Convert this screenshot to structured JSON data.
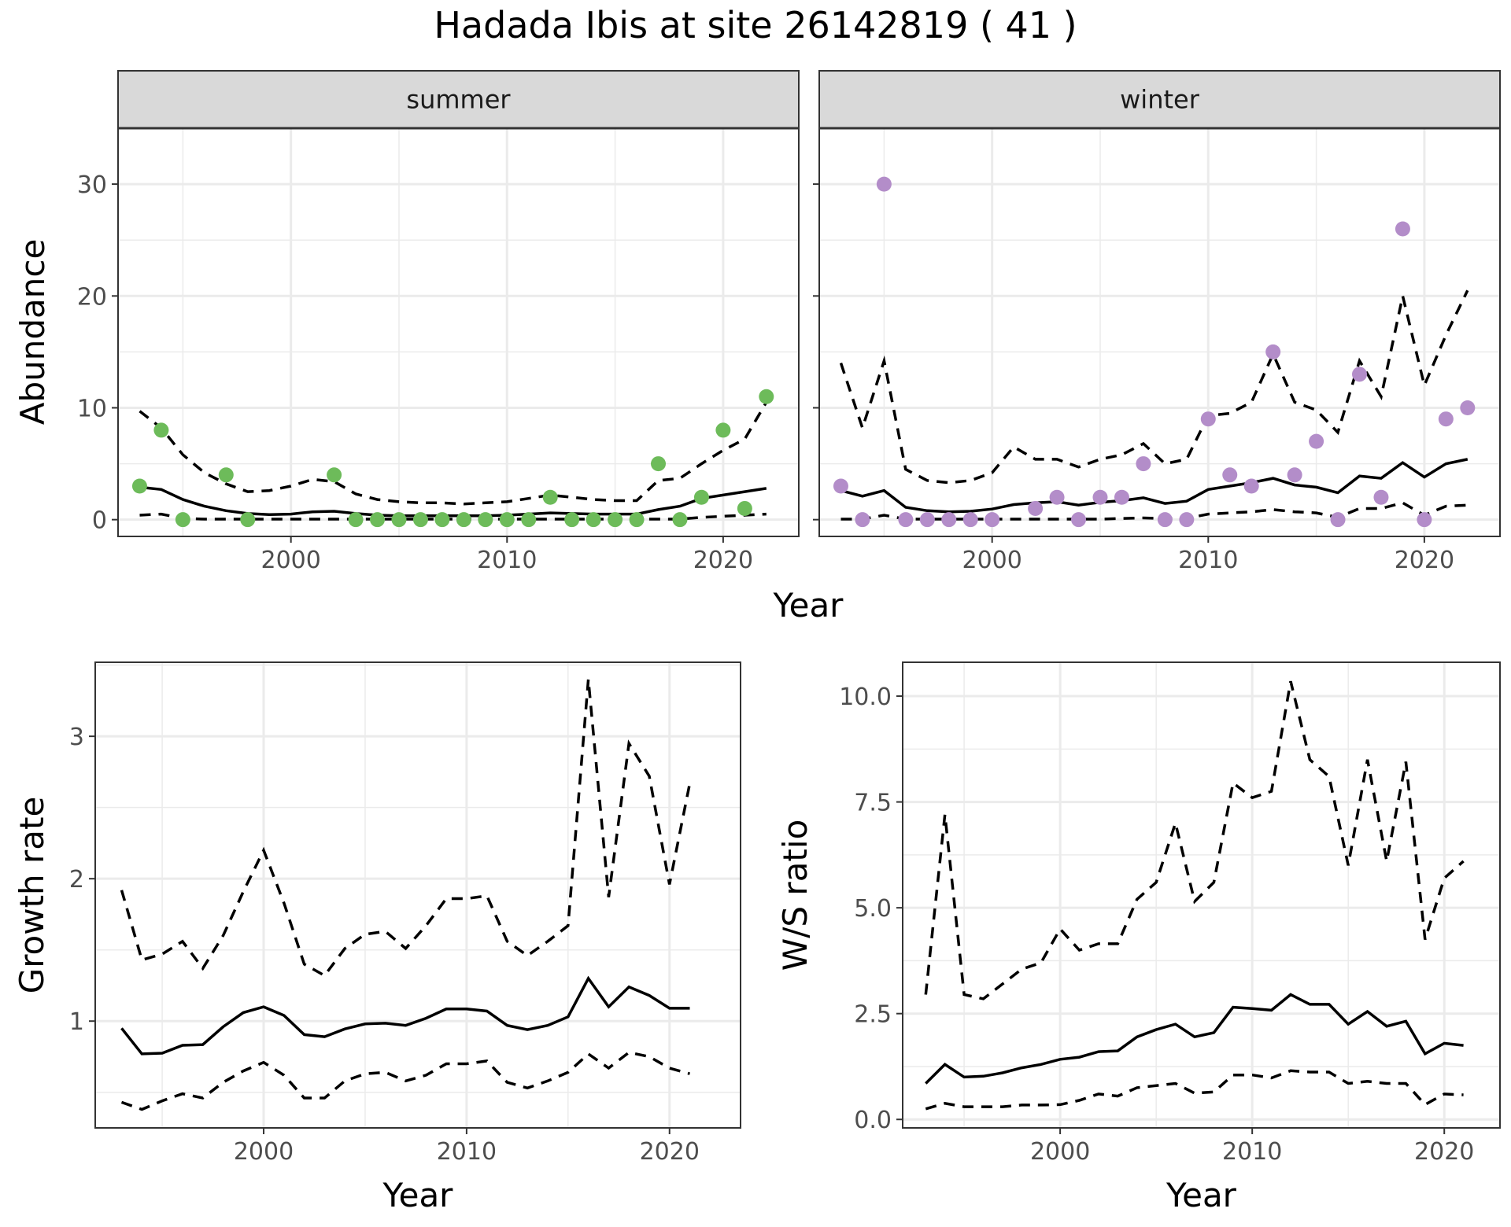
{
  "title": "Hadada Ibis at site 26142819 ( 41 )",
  "colors": {
    "summer_points": "#6dbb5a",
    "winter_points": "#b38dc9",
    "lines": "#000000"
  },
  "chart_data": [
    {
      "id": "abundance-summer",
      "type": "scatter",
      "strip_label": "summer",
      "xlabel": "Year",
      "ylabel": "Abundance",
      "xlim": [
        1992,
        2023.5
      ],
      "ylim": [
        -1.5,
        35
      ],
      "x_ticks": [
        2000,
        2010,
        2020
      ],
      "y_ticks": [
        0,
        10,
        20,
        30
      ],
      "x_tick_labels": [
        "2000",
        "2010",
        "2020"
      ],
      "y_tick_labels": [
        "0",
        "10",
        "20",
        "30"
      ],
      "point_color": "#6dbb5a",
      "points": {
        "x": [
          1993,
          1994,
          1995,
          1997,
          1998,
          2002,
          2003,
          2004,
          2005,
          2006,
          2007,
          2008,
          2009,
          2010,
          2011,
          2012,
          2013,
          2014,
          2015,
          2016,
          2017,
          2018,
          2019,
          2020,
          2021,
          2022
        ],
        "y": [
          3,
          8,
          0,
          4,
          0,
          4,
          0,
          0,
          0,
          0,
          0,
          0,
          0,
          0,
          0,
          2,
          0,
          0,
          0,
          0,
          5,
          0,
          2,
          8,
          1,
          11
        ]
      },
      "series": [
        {
          "name": "mean",
          "style": "solid",
          "x": [
            1993,
            1994,
            1995,
            1996,
            1997,
            1998,
            1999,
            2000,
            2001,
            2002,
            2003,
            2004,
            2005,
            2006,
            2007,
            2008,
            2009,
            2010,
            2011,
            2012,
            2013,
            2014,
            2015,
            2016,
            2017,
            2018,
            2019,
            2020,
            2021,
            2022
          ],
          "y": [
            2.9,
            2.7,
            1.8,
            1.2,
            0.8,
            0.55,
            0.45,
            0.5,
            0.7,
            0.75,
            0.55,
            0.4,
            0.35,
            0.35,
            0.35,
            0.35,
            0.35,
            0.4,
            0.5,
            0.6,
            0.55,
            0.5,
            0.5,
            0.5,
            0.9,
            1.2,
            1.9,
            2.2,
            2.5,
            2.8
          ]
        },
        {
          "name": "upper",
          "style": "dashed",
          "x": [
            1993,
            1994,
            1995,
            1996,
            1997,
            1998,
            1999,
            2000,
            2001,
            2002,
            2003,
            2004,
            2005,
            2006,
            2007,
            2008,
            2009,
            2010,
            2011,
            2012,
            2013,
            2014,
            2015,
            2016,
            2017,
            2018,
            2019,
            2020,
            2021,
            2022
          ],
          "y": [
            9.7,
            8.2,
            5.8,
            4.2,
            3.2,
            2.5,
            2.6,
            3.0,
            3.6,
            3.4,
            2.3,
            1.8,
            1.6,
            1.5,
            1.5,
            1.4,
            1.5,
            1.6,
            1.9,
            2.2,
            2.0,
            1.8,
            1.7,
            1.7,
            3.5,
            3.7,
            5.0,
            6.2,
            7.2,
            10.5
          ]
        },
        {
          "name": "lower",
          "style": "dashed",
          "x": [
            1993,
            1994,
            1995,
            1996,
            1997,
            1998,
            1999,
            2000,
            2001,
            2002,
            2003,
            2004,
            2005,
            2006,
            2007,
            2008,
            2009,
            2010,
            2011,
            2012,
            2013,
            2014,
            2015,
            2016,
            2017,
            2018,
            2019,
            2020,
            2021,
            2022
          ],
          "y": [
            0.4,
            0.5,
            0.1,
            0.05,
            0.05,
            0.05,
            0.05,
            0.05,
            0.05,
            0.05,
            0.05,
            0.05,
            0.05,
            0.05,
            0.05,
            0.05,
            0.05,
            0.05,
            0.05,
            0.05,
            0.05,
            0.05,
            0.05,
            0.05,
            0.05,
            0.05,
            0.2,
            0.3,
            0.4,
            0.5
          ]
        }
      ]
    },
    {
      "id": "abundance-winter",
      "type": "scatter",
      "strip_label": "winter",
      "xlabel": "Year",
      "ylabel": "",
      "xlim": [
        1992,
        2023.5
      ],
      "ylim": [
        -1.5,
        35
      ],
      "x_ticks": [
        2000,
        2010,
        2020
      ],
      "y_ticks": [
        0,
        10,
        20,
        30
      ],
      "x_tick_labels": [
        "2000",
        "2010",
        "2020"
      ],
      "y_tick_labels": [],
      "point_color": "#b38dc9",
      "points": {
        "x": [
          1993,
          1994,
          1995,
          1996,
          1997,
          1998,
          1999,
          2000,
          2002,
          2003,
          2004,
          2005,
          2006,
          2007,
          2008,
          2009,
          2010,
          2011,
          2012,
          2013,
          2014,
          2015,
          2016,
          2017,
          2018,
          2019,
          2020,
          2021,
          2022
        ],
        "y": [
          3,
          0,
          30,
          0,
          0,
          0,
          0,
          0,
          1,
          2,
          0,
          2,
          2,
          5,
          0,
          0,
          9,
          4,
          3,
          15,
          4,
          7,
          0,
          13,
          2,
          26,
          0,
          9,
          10
        ]
      },
      "series": [
        {
          "name": "mean",
          "style": "solid",
          "x": [
            1993,
            1994,
            1995,
            1996,
            1997,
            1998,
            1999,
            2000,
            2001,
            2002,
            2003,
            2004,
            2005,
            2006,
            2007,
            2008,
            2009,
            2010,
            2011,
            2012,
            2013,
            2014,
            2015,
            2016,
            2017,
            2018,
            2019,
            2020,
            2021,
            2022
          ],
          "y": [
            2.6,
            2.1,
            2.6,
            1.1,
            0.8,
            0.7,
            0.75,
            0.95,
            1.35,
            1.5,
            1.6,
            1.3,
            1.55,
            1.7,
            1.95,
            1.45,
            1.65,
            2.7,
            3.0,
            3.3,
            3.7,
            3.1,
            2.9,
            2.4,
            3.9,
            3.7,
            5.1,
            3.8,
            5.0,
            5.4
          ]
        },
        {
          "name": "upper",
          "style": "dashed",
          "x": [
            1993,
            1994,
            1995,
            1996,
            1997,
            1998,
            1999,
            2000,
            2001,
            2002,
            2003,
            2004,
            2005,
            2006,
            2007,
            2008,
            2009,
            2010,
            2011,
            2012,
            2013,
            2014,
            2015,
            2016,
            2017,
            2018,
            2019,
            2020,
            2021,
            2022
          ],
          "y": [
            14,
            8.2,
            14.2,
            4.5,
            3.5,
            3.3,
            3.5,
            4.2,
            6.5,
            5.4,
            5.4,
            4.7,
            5.4,
            5.8,
            6.8,
            5.0,
            5.4,
            9.3,
            9.5,
            10.5,
            14.8,
            10.5,
            9.8,
            7.8,
            14.2,
            11.0,
            20.0,
            12.0,
            16.5,
            20.5
          ]
        },
        {
          "name": "lower",
          "style": "dashed",
          "x": [
            1993,
            1994,
            1995,
            1996,
            1997,
            1998,
            1999,
            2000,
            2001,
            2002,
            2003,
            2004,
            2005,
            2006,
            2007,
            2008,
            2009,
            2010,
            2011,
            2012,
            2013,
            2014,
            2015,
            2016,
            2017,
            2018,
            2019,
            2020,
            2021,
            2022
          ],
          "y": [
            0.05,
            0.05,
            0.4,
            0.05,
            0.05,
            0.05,
            0.05,
            0.05,
            0.05,
            0.05,
            0.05,
            0.05,
            0.05,
            0.1,
            0.15,
            0.1,
            0.1,
            0.5,
            0.6,
            0.7,
            0.9,
            0.7,
            0.6,
            0.2,
            1.0,
            1.0,
            1.5,
            0.4,
            1.2,
            1.3
          ]
        }
      ]
    },
    {
      "id": "growth-rate",
      "type": "line",
      "strip_label": "",
      "xlabel": "Year",
      "ylabel": "Growth rate",
      "xlim": [
        1991.7,
        2023.5
      ],
      "ylim": [
        0.25,
        3.52
      ],
      "x_ticks": [
        2000,
        2010,
        2020
      ],
      "y_ticks": [
        1,
        2,
        3
      ],
      "x_tick_labels": [
        "2000",
        "2010",
        "2020"
      ],
      "y_tick_labels": [
        "1",
        "2",
        "3"
      ],
      "series": [
        {
          "name": "mean",
          "style": "solid",
          "x": [
            1993,
            1994,
            1995,
            1996,
            1997,
            1998,
            1999,
            2000,
            2001,
            2002,
            2003,
            2004,
            2005,
            2006,
            2007,
            2008,
            2009,
            2010,
            2011,
            2012,
            2013,
            2014,
            2015,
            2016,
            2017,
            2018,
            2019,
            2020,
            2021
          ],
          "y": [
            0.95,
            0.77,
            0.775,
            0.83,
            0.835,
            0.96,
            1.06,
            1.1,
            1.04,
            0.905,
            0.89,
            0.945,
            0.98,
            0.985,
            0.97,
            1.02,
            1.085,
            1.085,
            1.07,
            0.97,
            0.94,
            0.97,
            1.03,
            1.3,
            1.1,
            1.24,
            1.18,
            1.09,
            1.09
          ]
        },
        {
          "name": "upper",
          "style": "dashed",
          "x": [
            1993,
            1994,
            1995,
            1996,
            1997,
            1998,
            1999,
            2000,
            2001,
            2002,
            2003,
            2004,
            2005,
            2006,
            2007,
            2008,
            2009,
            2010,
            2011,
            2012,
            2013,
            2014,
            2015,
            2016,
            2017,
            2018,
            2019,
            2020,
            2021
          ],
          "y": [
            1.92,
            1.43,
            1.47,
            1.56,
            1.37,
            1.6,
            1.91,
            2.2,
            1.83,
            1.4,
            1.32,
            1.51,
            1.61,
            1.63,
            1.51,
            1.67,
            1.86,
            1.86,
            1.88,
            1.56,
            1.46,
            1.56,
            1.67,
            3.4,
            1.87,
            2.95,
            2.72,
            1.96,
            2.67
          ]
        },
        {
          "name": "lower",
          "style": "dashed",
          "x": [
            1993,
            1994,
            1995,
            1996,
            1997,
            1998,
            1999,
            2000,
            2001,
            2002,
            2003,
            2004,
            2005,
            2006,
            2007,
            2008,
            2009,
            2010,
            2011,
            2012,
            2013,
            2014,
            2015,
            2016,
            2017,
            2018,
            2019,
            2020,
            2021
          ],
          "y": [
            0.43,
            0.38,
            0.44,
            0.49,
            0.46,
            0.57,
            0.65,
            0.71,
            0.62,
            0.46,
            0.46,
            0.58,
            0.63,
            0.64,
            0.58,
            0.62,
            0.7,
            0.7,
            0.72,
            0.57,
            0.53,
            0.58,
            0.64,
            0.77,
            0.67,
            0.78,
            0.75,
            0.67,
            0.63
          ]
        }
      ]
    },
    {
      "id": "ws-ratio",
      "type": "line",
      "strip_label": "",
      "xlabel": "Year",
      "ylabel": "W/S ratio",
      "xlim": [
        1991.8,
        2022.9
      ],
      "ylim": [
        -0.2,
        10.8
      ],
      "x_ticks": [
        2000,
        2010,
        2020
      ],
      "y_ticks": [
        0,
        2.5,
        5,
        7.5,
        10
      ],
      "x_tick_labels": [
        "2000",
        "2010",
        "2020"
      ],
      "y_tick_labels": [
        "0.0",
        "2.5",
        "5.0",
        "7.5",
        "10.0"
      ],
      "series": [
        {
          "name": "mean",
          "style": "solid",
          "x": [
            1993,
            1994,
            1995,
            1996,
            1997,
            1998,
            1999,
            2000,
            2001,
            2002,
            2003,
            2004,
            2005,
            2006,
            2007,
            2008,
            2009,
            2010,
            2011,
            2012,
            2013,
            2014,
            2015,
            2016,
            2017,
            2018,
            2019,
            2020,
            2021
          ],
          "y": [
            0.85,
            1.3,
            1.0,
            1.02,
            1.1,
            1.22,
            1.3,
            1.42,
            1.47,
            1.6,
            1.62,
            1.95,
            2.12,
            2.25,
            1.95,
            2.05,
            2.65,
            2.62,
            2.58,
            2.95,
            2.72,
            2.72,
            2.25,
            2.55,
            2.2,
            2.32,
            1.55,
            1.8,
            1.75
          ]
        },
        {
          "name": "upper",
          "style": "dashed",
          "x": [
            1993,
            1994,
            1995,
            1996,
            1997,
            1998,
            1999,
            2000,
            2001,
            2002,
            2003,
            2004,
            2005,
            2006,
            2007,
            2008,
            2009,
            2010,
            2011,
            2012,
            2013,
            2014,
            2015,
            2016,
            2017,
            2018,
            2019,
            2020,
            2021
          ],
          "y": [
            2.95,
            7.2,
            2.95,
            2.85,
            3.2,
            3.55,
            3.7,
            4.5,
            4.0,
            4.15,
            4.15,
            5.2,
            5.6,
            7.0,
            5.15,
            5.6,
            7.95,
            7.6,
            7.75,
            10.35,
            8.5,
            8.1,
            6.0,
            8.5,
            6.1,
            8.45,
            4.25,
            5.7,
            6.1
          ]
        },
        {
          "name": "lower",
          "style": "dashed",
          "x": [
            1993,
            1994,
            1995,
            1996,
            1997,
            1998,
            1999,
            2000,
            2001,
            2002,
            2003,
            2004,
            2005,
            2006,
            2007,
            2008,
            2009,
            2010,
            2011,
            2012,
            2013,
            2014,
            2015,
            2016,
            2017,
            2018,
            2019,
            2020,
            2021
          ],
          "y": [
            0.25,
            0.38,
            0.3,
            0.3,
            0.3,
            0.34,
            0.34,
            0.35,
            0.45,
            0.6,
            0.55,
            0.75,
            0.8,
            0.85,
            0.62,
            0.65,
            1.05,
            1.05,
            0.98,
            1.15,
            1.12,
            1.12,
            0.85,
            0.9,
            0.85,
            0.85,
            0.35,
            0.6,
            0.58
          ]
        }
      ]
    }
  ]
}
